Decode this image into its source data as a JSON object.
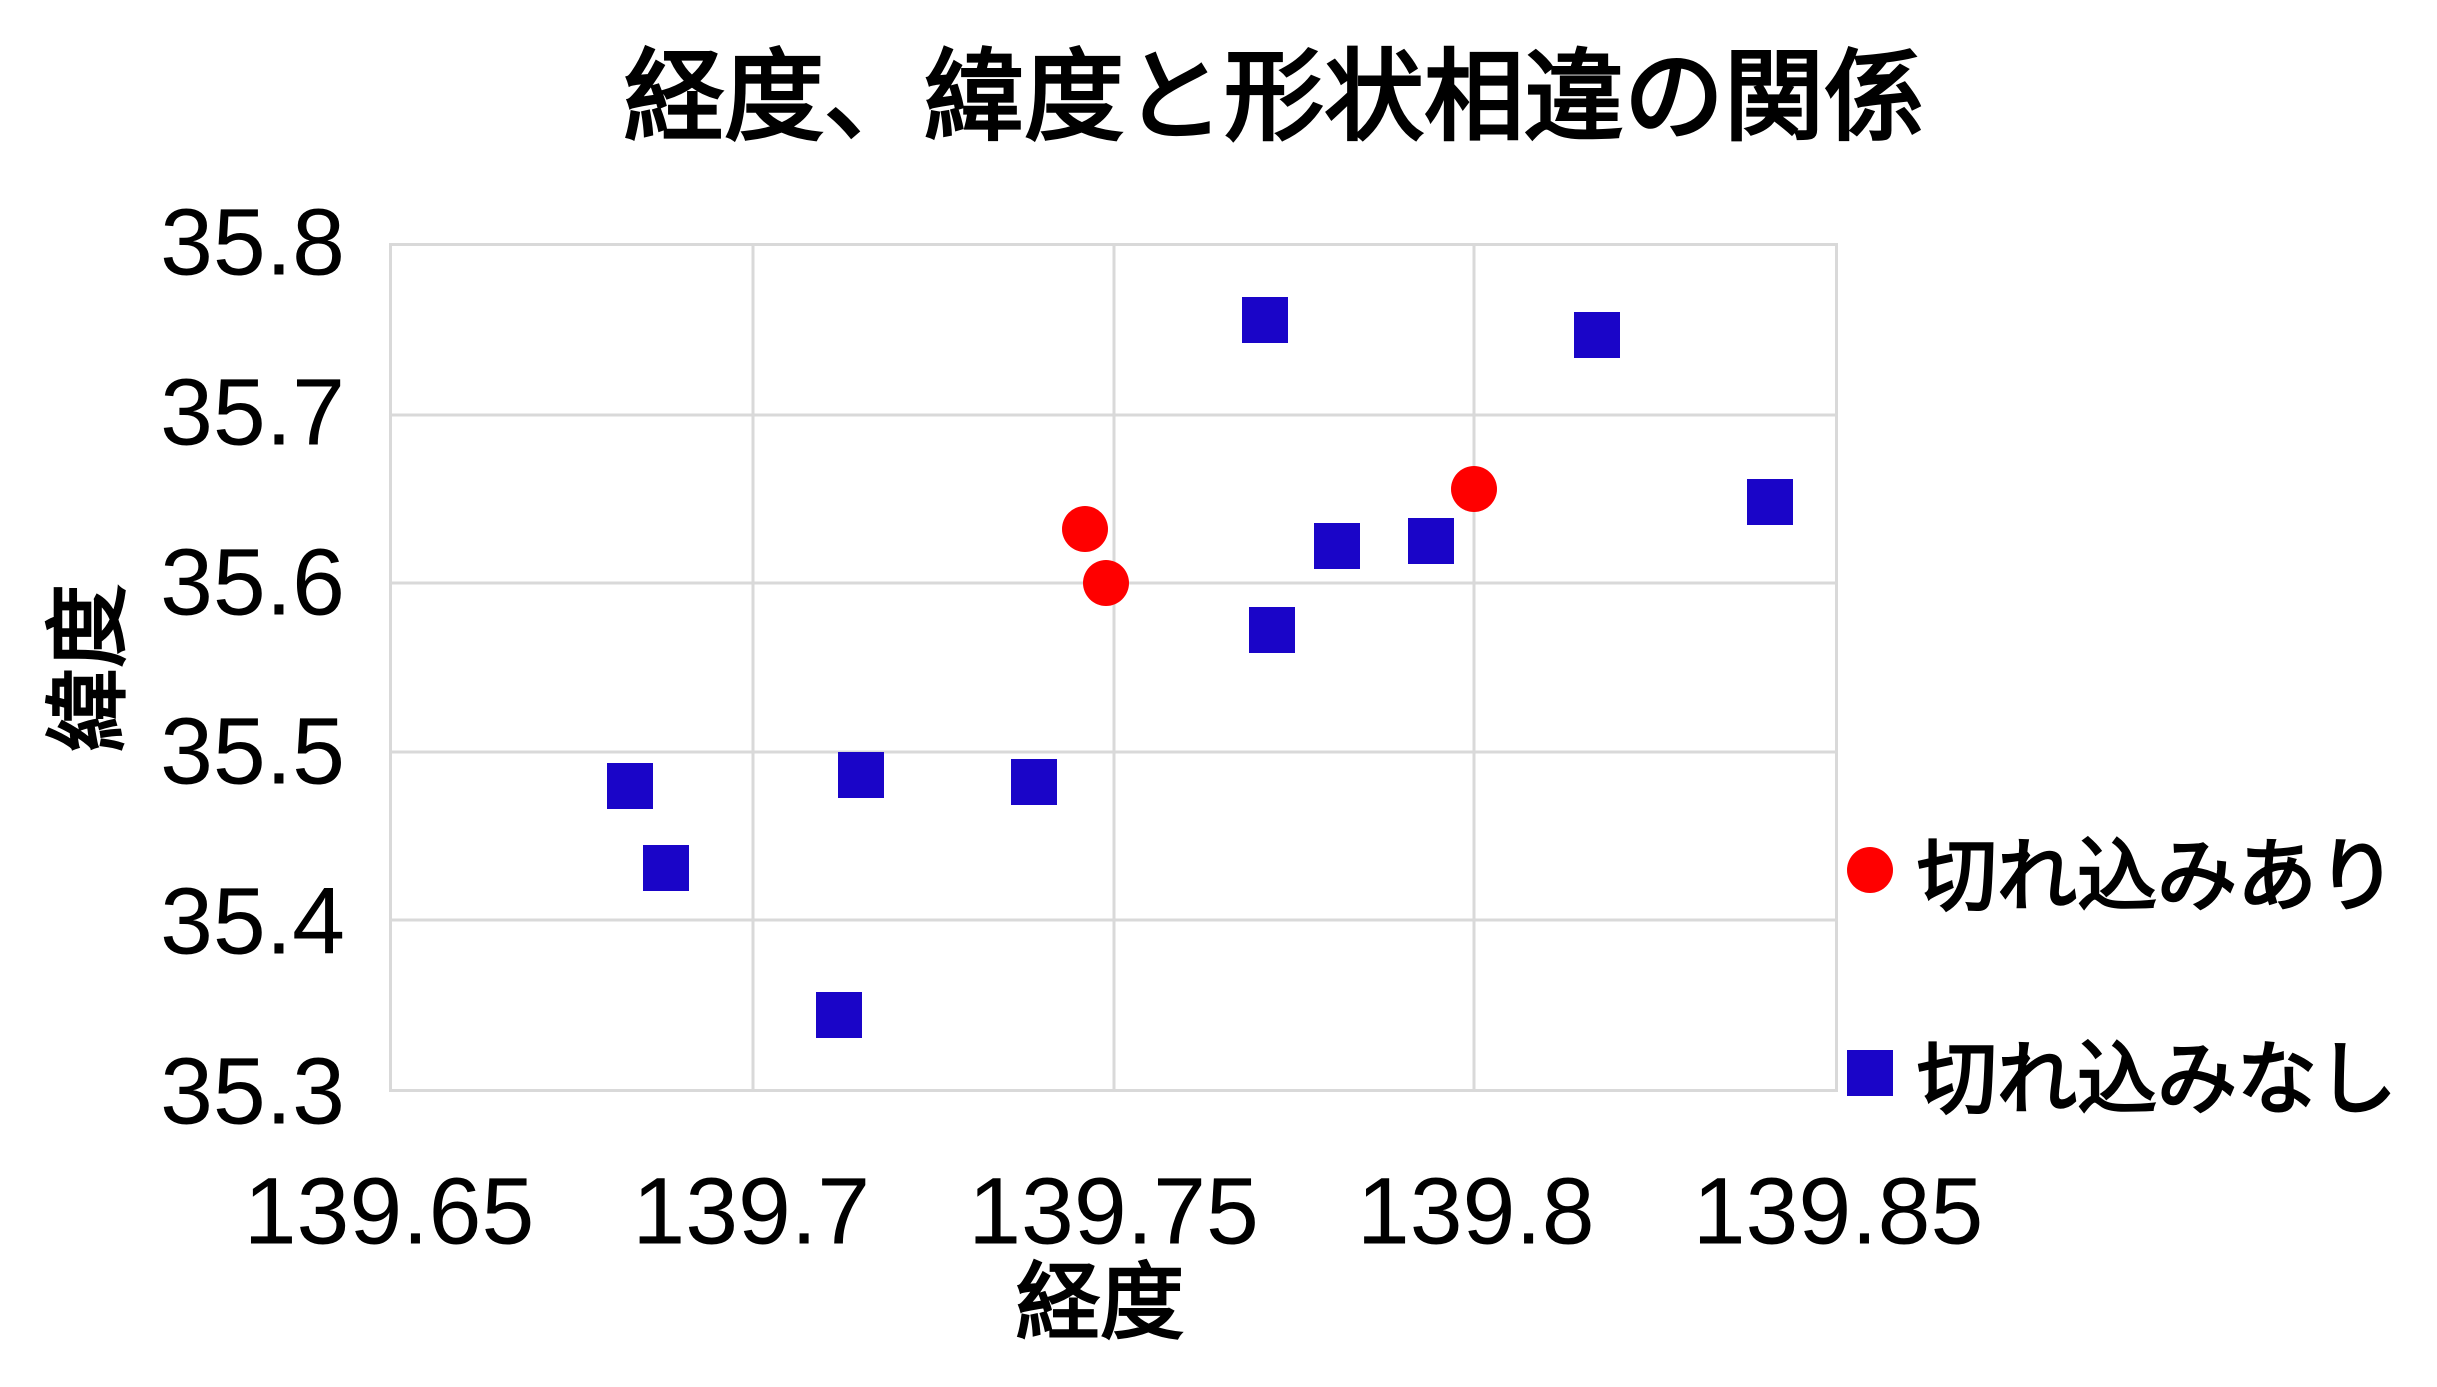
{
  "chart_data": {
    "type": "scatter",
    "title": "経度、緯度と形状相違の関係",
    "xlabel": "経度",
    "ylabel": "緯度",
    "xlim": [
      139.65,
      139.85
    ],
    "ylim": [
      35.3,
      35.8
    ],
    "grid": true,
    "legend_position": "right",
    "x_ticks": {
      "values": [
        139.65,
        139.7,
        139.75,
        139.8,
        139.85
      ],
      "labels": [
        "139.65",
        "139.7",
        "139.75",
        "139.8",
        "139.85"
      ]
    },
    "y_ticks": {
      "values": [
        35.8,
        35.7,
        35.6,
        35.5,
        35.4,
        35.3
      ],
      "labels": [
        "35.8",
        "35.7",
        "35.6",
        "35.5",
        "35.4",
        "35.3"
      ]
    },
    "series": [
      {
        "name": "切れ込みあり",
        "marker": "circle",
        "color": "#FF0000",
        "points": [
          [
            139.746,
            35.632
          ],
          [
            139.749,
            35.6
          ],
          [
            139.8,
            35.656
          ]
        ]
      },
      {
        "name": "切れ込みなし",
        "marker": "square",
        "color": "#1A05C8",
        "points": [
          [
            139.771,
            35.756
          ],
          [
            139.817,
            35.747
          ],
          [
            139.841,
            35.648
          ],
          [
            139.781,
            35.622
          ],
          [
            139.794,
            35.625
          ],
          [
            139.772,
            35.572
          ],
          [
            139.683,
            35.48
          ],
          [
            139.688,
            35.431
          ],
          [
            139.715,
            35.486
          ],
          [
            139.739,
            35.482
          ],
          [
            139.712,
            35.344
          ]
        ]
      }
    ]
  },
  "colors": {
    "background": "#FFFFFF",
    "grid": "#D9D9D9",
    "text": "#000000",
    "series_ari": "#FF0000",
    "series_nashi": "#1A05C8"
  }
}
